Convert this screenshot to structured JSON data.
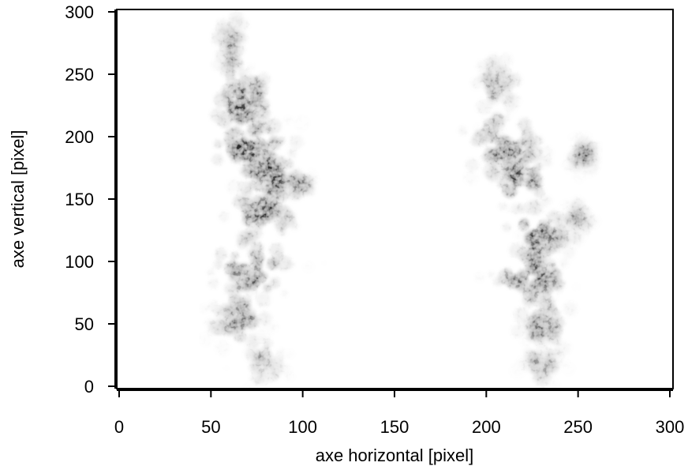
{
  "chart_data": {
    "type": "heatmap",
    "colormap": "grayscale-inverted",
    "xlabel": "axe horizontal [pixel]",
    "ylabel": "axe vertical [pixel]",
    "xlim": [
      -2,
      302
    ],
    "ylim": [
      -2,
      302
    ],
    "xticks": [
      0,
      50,
      100,
      150,
      200,
      250,
      300
    ],
    "yticks": [
      0,
      50,
      100,
      150,
      200,
      250,
      300
    ],
    "xtick_labels": [
      "0",
      "50",
      "100",
      "150",
      "200",
      "250",
      "300"
    ],
    "ytick_labels": [
      "0",
      "50",
      "100",
      "150",
      "200",
      "250",
      "300"
    ],
    "blobs": [
      {
        "x": 62,
        "y": 270,
        "sx": 6,
        "sy": 20,
        "a": 0.3
      },
      {
        "x": 68,
        "y": 225,
        "sx": 9,
        "sy": 18,
        "a": 0.75
      },
      {
        "x": 72,
        "y": 192,
        "sx": 13,
        "sy": 12,
        "a": 0.85
      },
      {
        "x": 82,
        "y": 170,
        "sx": 10,
        "sy": 12,
        "a": 0.75
      },
      {
        "x": 78,
        "y": 140,
        "sx": 12,
        "sy": 15,
        "a": 0.55
      },
      {
        "x": 72,
        "y": 95,
        "sx": 13,
        "sy": 16,
        "a": 0.65
      },
      {
        "x": 66,
        "y": 55,
        "sx": 10,
        "sy": 14,
        "a": 0.45
      },
      {
        "x": 80,
        "y": 20,
        "sx": 8,
        "sy": 15,
        "a": 0.2
      },
      {
        "x": 97,
        "y": 162,
        "sx": 6,
        "sy": 6,
        "a": 0.25
      },
      {
        "x": 205,
        "y": 240,
        "sx": 7,
        "sy": 18,
        "a": 0.3
      },
      {
        "x": 210,
        "y": 195,
        "sx": 14,
        "sy": 16,
        "a": 0.6
      },
      {
        "x": 218,
        "y": 165,
        "sx": 12,
        "sy": 15,
        "a": 0.55
      },
      {
        "x": 228,
        "y": 120,
        "sx": 11,
        "sy": 14,
        "a": 0.7
      },
      {
        "x": 226,
        "y": 88,
        "sx": 13,
        "sy": 15,
        "a": 0.7
      },
      {
        "x": 232,
        "y": 50,
        "sx": 9,
        "sy": 14,
        "a": 0.5
      },
      {
        "x": 230,
        "y": 18,
        "sx": 7,
        "sy": 12,
        "a": 0.2
      },
      {
        "x": 252,
        "y": 185,
        "sx": 5,
        "sy": 8,
        "a": 0.25
      },
      {
        "x": 250,
        "y": 135,
        "sx": 5,
        "sy": 8,
        "a": 0.15
      }
    ]
  }
}
